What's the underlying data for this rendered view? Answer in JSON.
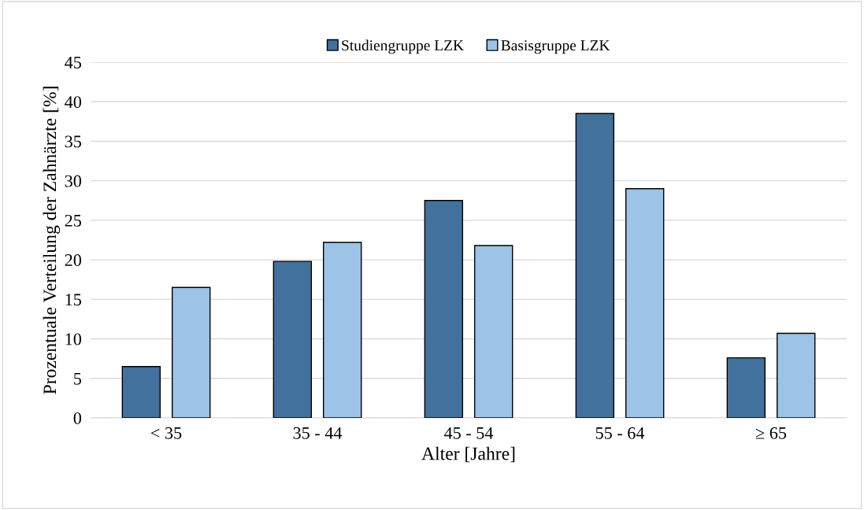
{
  "chart_data": {
    "type": "bar",
    "xlabel": "Alter [Jahre]",
    "ylabel": "Prozentuale Verteilung der Zahnärzte [%]",
    "categories": [
      "< 35",
      "35 - 44",
      "45 - 54",
      "55 - 64",
      "≥ 65"
    ],
    "series": [
      {
        "name": "Studiengruppe LZK",
        "color": "#41719c",
        "values": [
          6.5,
          19.8,
          27.5,
          38.5,
          7.6
        ]
      },
      {
        "name": "Basisgruppe LZK",
        "color": "#9dc3e6",
        "values": [
          16.5,
          22.2,
          21.8,
          29.0,
          10.7
        ]
      }
    ],
    "ylim": [
      0,
      45
    ],
    "yticks": [
      0,
      5,
      10,
      15,
      20,
      25,
      30,
      35,
      40,
      45
    ],
    "grid": "y",
    "legend": "top"
  }
}
